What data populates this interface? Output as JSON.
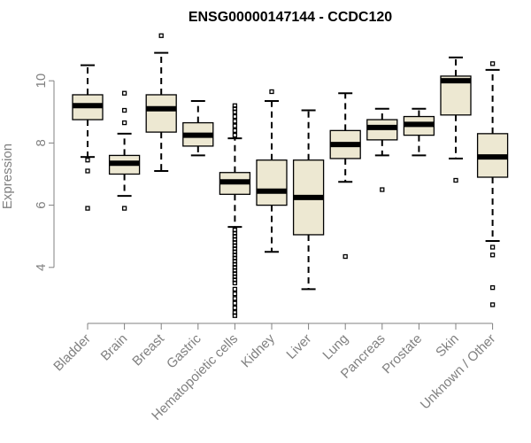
{
  "chart_data": {
    "type": "boxplot",
    "title": "ENSG00000147144 - CCDC120",
    "ylabel": "Expression",
    "ylim": [
      2.2,
      11.6
    ],
    "y_ticks": [
      4,
      6,
      8,
      10
    ],
    "categories": [
      "Bladder",
      "Brain",
      "Breast",
      "Gastric",
      "Hematopoietic cells",
      "Kidney",
      "Liver",
      "Lung",
      "Pancreas",
      "Prostate",
      "Skin",
      "Unknown / Other"
    ],
    "colors": {
      "box_fill": "#ede8d2",
      "axis": "#808080"
    },
    "boxes": [
      {
        "category": "Bladder",
        "whisker_low": 7.55,
        "q1": 8.75,
        "median": 9.2,
        "q3": 9.55,
        "whisker_high": 10.5,
        "outliers": [
          7.45,
          7.1,
          5.9
        ]
      },
      {
        "category": "Brain",
        "whisker_low": 6.3,
        "q1": 7.0,
        "median": 7.35,
        "q3": 7.6,
        "whisker_high": 8.3,
        "outliers": [
          9.6,
          9.05,
          8.65,
          5.9
        ]
      },
      {
        "category": "Breast",
        "whisker_low": 7.1,
        "q1": 8.35,
        "median": 9.1,
        "q3": 9.55,
        "whisker_high": 10.9,
        "outliers": [
          11.45
        ]
      },
      {
        "category": "Gastric",
        "whisker_low": 7.6,
        "q1": 7.9,
        "median": 8.25,
        "q3": 8.65,
        "whisker_high": 9.35,
        "outliers": []
      },
      {
        "category": "Hematopoietic cells",
        "whisker_low": 5.3,
        "q1": 6.35,
        "median": 6.75,
        "q3": 7.05,
        "whisker_high": 8.15,
        "outliers": [
          9.2,
          9.1,
          9.0,
          8.85,
          8.7,
          8.55,
          8.4,
          8.25,
          5.2,
          5.1,
          5.0,
          4.9,
          4.8,
          4.7,
          4.6,
          4.5,
          4.4,
          4.3,
          4.2,
          4.1,
          4.0,
          3.9,
          3.8,
          3.7,
          3.6,
          3.5,
          3.3,
          3.15,
          3.0,
          2.85,
          2.7,
          2.55,
          2.45
        ]
      },
      {
        "category": "Kidney",
        "whisker_low": 4.5,
        "q1": 6.0,
        "median": 6.45,
        "q3": 7.45,
        "whisker_high": 9.35,
        "outliers": [
          9.65
        ]
      },
      {
        "category": "Liver",
        "whisker_low": 3.3,
        "q1": 5.05,
        "median": 6.25,
        "q3": 7.45,
        "whisker_high": 9.05,
        "outliers": []
      },
      {
        "category": "Lung",
        "whisker_low": 6.75,
        "q1": 7.5,
        "median": 7.95,
        "q3": 8.4,
        "whisker_high": 9.6,
        "outliers": [
          4.35
        ]
      },
      {
        "category": "Pancreas",
        "whisker_low": 7.6,
        "q1": 8.1,
        "median": 8.5,
        "q3": 8.75,
        "whisker_high": 9.1,
        "outliers": [
          6.5
        ]
      },
      {
        "category": "Prostate",
        "whisker_low": 7.6,
        "q1": 8.25,
        "median": 8.6,
        "q3": 8.85,
        "whisker_high": 9.1,
        "outliers": []
      },
      {
        "category": "Skin",
        "whisker_low": 7.5,
        "q1": 8.9,
        "median": 10.0,
        "q3": 10.15,
        "whisker_high": 10.75,
        "outliers": [
          6.8
        ]
      },
      {
        "category": "Unknown / Other",
        "whisker_low": 4.85,
        "q1": 6.9,
        "median": 7.55,
        "q3": 8.3,
        "whisker_high": 10.35,
        "outliers": [
          10.55,
          4.65,
          4.4,
          3.35,
          2.8
        ]
      }
    ]
  }
}
